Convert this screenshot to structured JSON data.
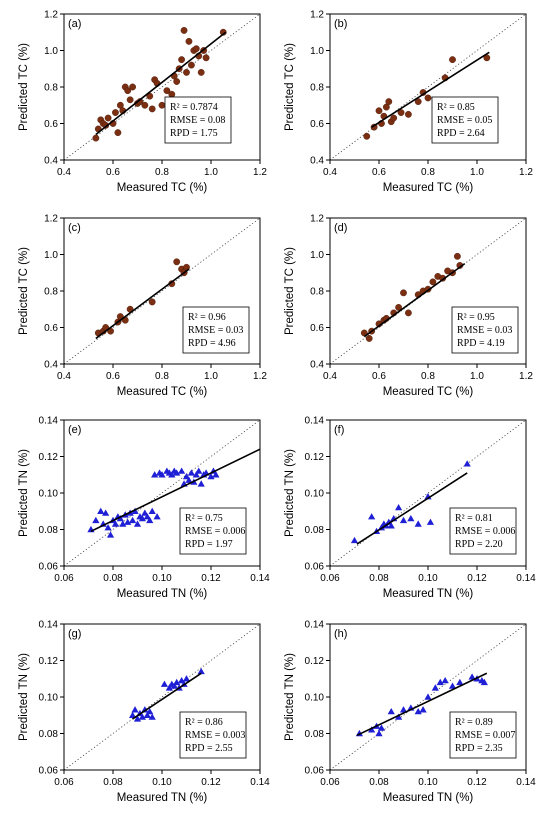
{
  "colors": {
    "tc_point": "#7a2e12",
    "tc_edge": "#4a1a08",
    "tn_point": "#1f1fd6",
    "fit": "#000000",
    "frame": "#000000",
    "diag": "#444444"
  },
  "chart_data": [
    {
      "type": "scatter",
      "panel": "(a)",
      "xlabel": "Measured TC (%)",
      "ylabel": "Predicted TC (%)",
      "xlim": [
        0.4,
        1.2
      ],
      "ylim": [
        0.4,
        1.2
      ],
      "xticks": [
        "0.4",
        "0.6",
        "0.8",
        "1.0",
        "1.2"
      ],
      "yticks": [
        "0.4",
        "0.6",
        "0.8",
        "1.0",
        "1.2"
      ],
      "marker": "circle",
      "stats": [
        "R² = 0.7874",
        "RMSE = 0.08",
        "RPD = 1.75"
      ],
      "fit": [
        [
          0.53,
          0.54
        ],
        [
          1.06,
          1.1
        ]
      ],
      "points": [
        [
          0.53,
          0.52
        ],
        [
          0.54,
          0.57
        ],
        [
          0.55,
          0.62
        ],
        [
          0.56,
          0.6
        ],
        [
          0.57,
          0.59
        ],
        [
          0.58,
          0.63
        ],
        [
          0.6,
          0.6
        ],
        [
          0.61,
          0.66
        ],
        [
          0.62,
          0.55
        ],
        [
          0.63,
          0.7
        ],
        [
          0.64,
          0.67
        ],
        [
          0.65,
          0.8
        ],
        [
          0.66,
          0.78
        ],
        [
          0.67,
          0.73
        ],
        [
          0.68,
          0.8
        ],
        [
          0.7,
          0.71
        ],
        [
          0.71,
          0.72
        ],
        [
          0.73,
          0.7
        ],
        [
          0.75,
          0.75
        ],
        [
          0.76,
          0.68
        ],
        [
          0.77,
          0.84
        ],
        [
          0.78,
          0.82
        ],
        [
          0.8,
          0.7
        ],
        [
          0.82,
          0.78
        ],
        [
          0.84,
          0.76
        ],
        [
          0.85,
          0.86
        ],
        [
          0.86,
          0.83
        ],
        [
          0.87,
          0.9
        ],
        [
          0.88,
          0.95
        ],
        [
          0.89,
          1.11
        ],
        [
          0.9,
          0.88
        ],
        [
          0.91,
          1.05
        ],
        [
          0.92,
          0.92
        ],
        [
          0.93,
          1.0
        ],
        [
          0.94,
          1.01
        ],
        [
          0.95,
          0.97
        ],
        [
          0.96,
          0.88
        ],
        [
          0.97,
          1.0
        ],
        [
          0.98,
          0.96
        ],
        [
          1.05,
          1.1
        ]
      ]
    },
    {
      "type": "scatter",
      "panel": "(b)",
      "xlabel": "Measured TC (%)",
      "ylabel": "Predicted TC (%)",
      "xlim": [
        0.4,
        1.2
      ],
      "ylim": [
        0.4,
        1.2
      ],
      "xticks": [
        "0.4",
        "0.6",
        "0.8",
        "1.0",
        "1.2"
      ],
      "yticks": [
        "0.4",
        "0.6",
        "0.8",
        "1.0",
        "1.2"
      ],
      "marker": "circle",
      "stats": [
        "R² = 0.85",
        "RMSE = 0.05",
        "RPD = 2.64"
      ],
      "fit": [
        [
          0.57,
          0.58
        ],
        [
          1.05,
          0.99
        ]
      ],
      "points": [
        [
          0.55,
          0.53
        ],
        [
          0.58,
          0.58
        ],
        [
          0.6,
          0.67
        ],
        [
          0.61,
          0.6
        ],
        [
          0.62,
          0.64
        ],
        [
          0.63,
          0.69
        ],
        [
          0.64,
          0.72
        ],
        [
          0.65,
          0.61
        ],
        [
          0.66,
          0.63
        ],
        [
          0.69,
          0.66
        ],
        [
          0.72,
          0.65
        ],
        [
          0.76,
          0.72
        ],
        [
          0.78,
          0.77
        ],
        [
          0.8,
          0.74
        ],
        [
          0.87,
          0.85
        ],
        [
          0.9,
          0.95
        ],
        [
          1.04,
          0.96
        ]
      ]
    },
    {
      "type": "scatter",
      "panel": "(c)",
      "xlabel": "Measured TC (%)",
      "ylabel": "Predicted TC (%)",
      "xlim": [
        0.4,
        1.2
      ],
      "ylim": [
        0.4,
        1.2
      ],
      "xticks": [
        "0.4",
        "0.6",
        "0.8",
        "1.0",
        "1.2"
      ],
      "yticks": [
        "0.4",
        "0.6",
        "0.8",
        "1.0",
        "1.2"
      ],
      "marker": "circle",
      "stats": [
        "R² = 0.96",
        "RMSE = 0.03",
        "RPD = 4.96"
      ],
      "fit": [
        [
          0.53,
          0.54
        ],
        [
          0.91,
          0.92
        ]
      ],
      "points": [
        [
          0.54,
          0.57
        ],
        [
          0.56,
          0.58
        ],
        [
          0.57,
          0.6
        ],
        [
          0.59,
          0.58
        ],
        [
          0.62,
          0.63
        ],
        [
          0.63,
          0.66
        ],
        [
          0.65,
          0.64
        ],
        [
          0.67,
          0.7
        ],
        [
          0.76,
          0.74
        ],
        [
          0.84,
          0.84
        ],
        [
          0.86,
          0.96
        ],
        [
          0.88,
          0.92
        ],
        [
          0.89,
          0.9
        ],
        [
          0.9,
          0.93
        ]
      ]
    },
    {
      "type": "scatter",
      "panel": "(d)",
      "xlabel": "Measured TC (%)",
      "ylabel": "Predicted TC (%)",
      "xlim": [
        0.4,
        1.2
      ],
      "ylim": [
        0.4,
        1.2
      ],
      "xticks": [
        "0.4",
        "0.6",
        "0.8",
        "1.0",
        "1.2"
      ],
      "yticks": [
        "0.4",
        "0.6",
        "0.8",
        "1.0",
        "1.2"
      ],
      "marker": "circle",
      "stats": [
        "R² = 0.95",
        "RMSE = 0.03",
        "RPD = 4.19"
      ],
      "fit": [
        [
          0.54,
          0.55
        ],
        [
          0.95,
          0.95
        ]
      ],
      "points": [
        [
          0.54,
          0.57
        ],
        [
          0.56,
          0.54
        ],
        [
          0.57,
          0.58
        ],
        [
          0.6,
          0.62
        ],
        [
          0.62,
          0.64
        ],
        [
          0.63,
          0.65
        ],
        [
          0.66,
          0.68
        ],
        [
          0.68,
          0.71
        ],
        [
          0.7,
          0.79
        ],
        [
          0.72,
          0.68
        ],
        [
          0.76,
          0.78
        ],
        [
          0.78,
          0.8
        ],
        [
          0.8,
          0.81
        ],
        [
          0.82,
          0.85
        ],
        [
          0.84,
          0.88
        ],
        [
          0.86,
          0.87
        ],
        [
          0.88,
          0.91
        ],
        [
          0.9,
          0.9
        ],
        [
          0.92,
          0.99
        ],
        [
          0.93,
          0.94
        ]
      ]
    },
    {
      "type": "scatter",
      "panel": "(e)",
      "xlabel": "Measured TN (%)",
      "ylabel": "Predicted TN (%)",
      "xlim": [
        0.06,
        0.14
      ],
      "ylim": [
        0.06,
        0.14
      ],
      "xticks": [
        "0.06",
        "0.08",
        "0.10",
        "0.12",
        "0.14"
      ],
      "yticks": [
        "0.06",
        "0.08",
        "0.10",
        "0.12",
        "0.14"
      ],
      "marker": "triangle",
      "stats": [
        "R² = 0.75",
        "RMSE = 0.006",
        "RPD = 1.97"
      ],
      "fit": [
        [
          0.071,
          0.079
        ],
        [
          0.14,
          0.124
        ]
      ],
      "points": [
        [
          0.071,
          0.08
        ],
        [
          0.073,
          0.085
        ],
        [
          0.075,
          0.09
        ],
        [
          0.076,
          0.083
        ],
        [
          0.077,
          0.089
        ],
        [
          0.078,
          0.081
        ],
        [
          0.079,
          0.077
        ],
        [
          0.08,
          0.085
        ],
        [
          0.081,
          0.083
        ],
        [
          0.082,
          0.087
        ],
        [
          0.083,
          0.086
        ],
        [
          0.084,
          0.083
        ],
        [
          0.085,
          0.088
        ],
        [
          0.086,
          0.084
        ],
        [
          0.087,
          0.089
        ],
        [
          0.088,
          0.085
        ],
        [
          0.089,
          0.09
        ],
        [
          0.09,
          0.083
        ],
        [
          0.091,
          0.087
        ],
        [
          0.092,
          0.086
        ],
        [
          0.093,
          0.089
        ],
        [
          0.094,
          0.087
        ],
        [
          0.095,
          0.085
        ],
        [
          0.096,
          0.09
        ],
        [
          0.097,
          0.11
        ],
        [
          0.098,
          0.087
        ],
        [
          0.099,
          0.111
        ],
        [
          0.1,
          0.11
        ],
        [
          0.102,
          0.112
        ],
        [
          0.103,
          0.111
        ],
        [
          0.104,
          0.11
        ],
        [
          0.105,
          0.112
        ],
        [
          0.106,
          0.111
        ],
        [
          0.108,
          0.112
        ],
        [
          0.109,
          0.105
        ],
        [
          0.11,
          0.109
        ],
        [
          0.111,
          0.107
        ],
        [
          0.112,
          0.111
        ],
        [
          0.113,
          0.106
        ],
        [
          0.114,
          0.11
        ],
        [
          0.115,
          0.112
        ],
        [
          0.116,
          0.105
        ],
        [
          0.117,
          0.11
        ],
        [
          0.118,
          0.111
        ],
        [
          0.12,
          0.109
        ],
        [
          0.121,
          0.112
        ],
        [
          0.122,
          0.11
        ]
      ]
    },
    {
      "type": "scatter",
      "panel": "(f)",
      "xlabel": "Measured TN (%)",
      "ylabel": "Predicted TN (%)",
      "xlim": [
        0.06,
        0.14
      ],
      "ylim": [
        0.06,
        0.14
      ],
      "xticks": [
        "0.06",
        "0.08",
        "0.10",
        "0.12",
        "0.14"
      ],
      "yticks": [
        "0.06",
        "0.08",
        "0.10",
        "0.12",
        "0.14"
      ],
      "marker": "triangle",
      "stats": [
        "R² = 0.81",
        "RMSE = 0.006",
        "RPD = 2.20"
      ],
      "fit": [
        [
          0.071,
          0.072
        ],
        [
          0.116,
          0.111
        ]
      ],
      "points": [
        [
          0.07,
          0.074
        ],
        [
          0.077,
          0.087
        ],
        [
          0.079,
          0.079
        ],
        [
          0.081,
          0.081
        ],
        [
          0.082,
          0.083
        ],
        [
          0.083,
          0.082
        ],
        [
          0.084,
          0.084
        ],
        [
          0.085,
          0.082
        ],
        [
          0.086,
          0.086
        ],
        [
          0.088,
          0.092
        ],
        [
          0.09,
          0.085
        ],
        [
          0.093,
          0.086
        ],
        [
          0.096,
          0.083
        ],
        [
          0.1,
          0.098
        ],
        [
          0.101,
          0.084
        ],
        [
          0.116,
          0.116
        ]
      ]
    },
    {
      "type": "scatter",
      "panel": "(g)",
      "xlabel": "Measured TN (%)",
      "ylabel": "Predicted TN (%)",
      "xlim": [
        0.06,
        0.14
      ],
      "ylim": [
        0.06,
        0.14
      ],
      "xticks": [
        "0.06",
        "0.08",
        "0.10",
        "0.12",
        "0.14"
      ],
      "yticks": [
        "0.06",
        "0.08",
        "0.10",
        "0.12",
        "0.14"
      ],
      "marker": "triangle",
      "stats": [
        "R² = 0.86",
        "RMSE = 0.003",
        "RPD = 2.55"
      ],
      "fit": [
        [
          0.088,
          0.088
        ],
        [
          0.116,
          0.113
        ]
      ],
      "points": [
        [
          0.088,
          0.09
        ],
        [
          0.089,
          0.093
        ],
        [
          0.09,
          0.088
        ],
        [
          0.091,
          0.091
        ],
        [
          0.092,
          0.089
        ],
        [
          0.093,
          0.093
        ],
        [
          0.094,
          0.09
        ],
        [
          0.095,
          0.092
        ],
        [
          0.096,
          0.089
        ],
        [
          0.101,
          0.107
        ],
        [
          0.103,
          0.105
        ],
        [
          0.104,
          0.107
        ],
        [
          0.105,
          0.106
        ],
        [
          0.106,
          0.108
        ],
        [
          0.107,
          0.105
        ],
        [
          0.108,
          0.109
        ],
        [
          0.109,
          0.107
        ],
        [
          0.11,
          0.11
        ],
        [
          0.116,
          0.114
        ]
      ]
    },
    {
      "type": "scatter",
      "panel": "(h)",
      "xlabel": "Measured TN (%)",
      "ylabel": "Predicted TN (%)",
      "xlim": [
        0.06,
        0.14
      ],
      "ylim": [
        0.06,
        0.14
      ],
      "xticks": [
        "0.06",
        "0.08",
        "0.10",
        "0.12",
        "0.14"
      ],
      "yticks": [
        "0.06",
        "0.08",
        "0.10",
        "0.12",
        "0.14"
      ],
      "marker": "triangle",
      "stats": [
        "R² = 0.89",
        "RMSE = 0.007",
        "RPD = 2.35"
      ],
      "fit": [
        [
          0.071,
          0.079
        ],
        [
          0.124,
          0.113
        ]
      ],
      "points": [
        [
          0.072,
          0.08
        ],
        [
          0.077,
          0.082
        ],
        [
          0.079,
          0.084
        ],
        [
          0.08,
          0.08
        ],
        [
          0.081,
          0.083
        ],
        [
          0.085,
          0.092
        ],
        [
          0.088,
          0.089
        ],
        [
          0.09,
          0.093
        ],
        [
          0.093,
          0.094
        ],
        [
          0.096,
          0.092
        ],
        [
          0.098,
          0.093
        ],
        [
          0.1,
          0.1
        ],
        [
          0.103,
          0.105
        ],
        [
          0.105,
          0.108
        ],
        [
          0.107,
          0.109
        ],
        [
          0.11,
          0.106
        ],
        [
          0.113,
          0.108
        ],
        [
          0.118,
          0.111
        ],
        [
          0.12,
          0.11
        ],
        [
          0.122,
          0.109
        ],
        [
          0.123,
          0.108
        ]
      ]
    }
  ]
}
